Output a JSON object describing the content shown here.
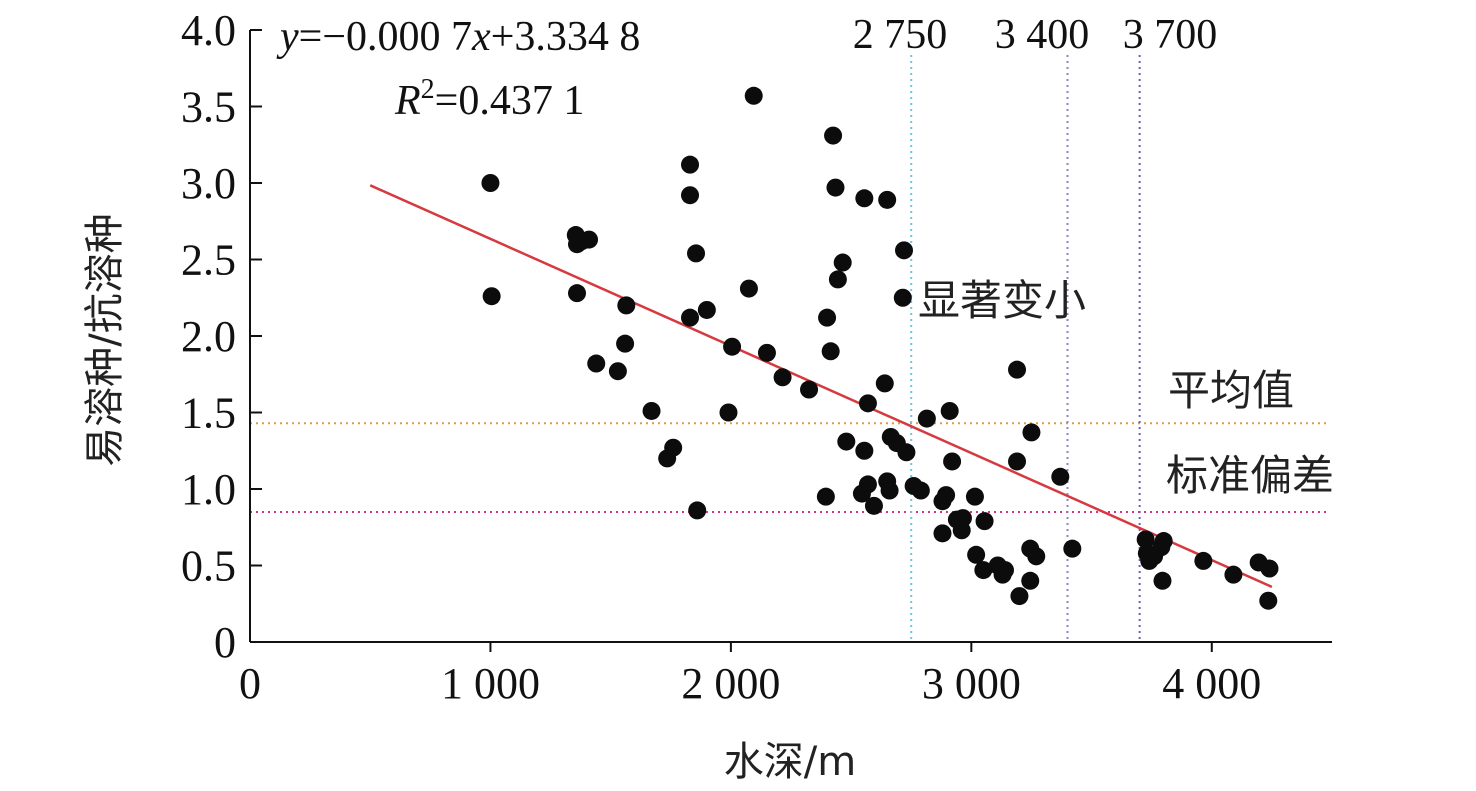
{
  "chart_data": {
    "type": "scatter",
    "xlabel": "水深/m",
    "ylabel": "易溶种/抗溶种",
    "xlim": [
      0,
      4500
    ],
    "ylim": [
      0,
      4.0
    ],
    "x_ticks": [
      {
        "value": 0,
        "label": "0"
      },
      {
        "value": 1000,
        "label": "1 000"
      },
      {
        "value": 2000,
        "label": "2 000"
      },
      {
        "value": 3000,
        "label": "3 000"
      },
      {
        "value": 4000,
        "label": "4 000"
      }
    ],
    "y_ticks": [
      {
        "value": 0,
        "label": "0"
      },
      {
        "value": 0.5,
        "label": "0.5"
      },
      {
        "value": 1.0,
        "label": "1.0"
      },
      {
        "value": 1.5,
        "label": "1.5"
      },
      {
        "value": 2.0,
        "label": "2.0"
      },
      {
        "value": 2.5,
        "label": "2.5"
      },
      {
        "value": 3.0,
        "label": "3.0"
      },
      {
        "value": 3.5,
        "label": "3.5"
      },
      {
        "value": 4.0,
        "label": "4.0"
      }
    ],
    "points": [
      {
        "x": 1000,
        "y": 3.0
      },
      {
        "x": 1005,
        "y": 2.26
      },
      {
        "x": 1355,
        "y": 2.66
      },
      {
        "x": 1360,
        "y": 2.6
      },
      {
        "x": 1380,
        "y": 2.62
      },
      {
        "x": 1410,
        "y": 2.63
      },
      {
        "x": 1360,
        "y": 2.28
      },
      {
        "x": 1565,
        "y": 2.2
      },
      {
        "x": 1560,
        "y": 1.95
      },
      {
        "x": 1440,
        "y": 1.82
      },
      {
        "x": 1530,
        "y": 1.77
      },
      {
        "x": 1670,
        "y": 1.51
      },
      {
        "x": 1760,
        "y": 1.27
      },
      {
        "x": 1735,
        "y": 1.2
      },
      {
        "x": 1830,
        "y": 3.12
      },
      {
        "x": 1830,
        "y": 2.92
      },
      {
        "x": 1855,
        "y": 2.54
      },
      {
        "x": 1900,
        "y": 2.17
      },
      {
        "x": 1830,
        "y": 2.12
      },
      {
        "x": 1860,
        "y": 0.86
      },
      {
        "x": 1990,
        "y": 1.5
      },
      {
        "x": 2005,
        "y": 1.93
      },
      {
        "x": 2075,
        "y": 2.31
      },
      {
        "x": 2095,
        "y": 3.57
      },
      {
        "x": 2150,
        "y": 1.89
      },
      {
        "x": 2215,
        "y": 1.73
      },
      {
        "x": 2325,
        "y": 1.65
      },
      {
        "x": 2425,
        "y": 3.31
      },
      {
        "x": 2435,
        "y": 2.97
      },
      {
        "x": 2445,
        "y": 2.37
      },
      {
        "x": 2465,
        "y": 2.48
      },
      {
        "x": 2400,
        "y": 2.12
      },
      {
        "x": 2415,
        "y": 1.9
      },
      {
        "x": 2395,
        "y": 0.95
      },
      {
        "x": 2555,
        "y": 2.9
      },
      {
        "x": 2650,
        "y": 2.89
      },
      {
        "x": 2720,
        "y": 2.56
      },
      {
        "x": 2715,
        "y": 2.25
      },
      {
        "x": 2570,
        "y": 1.56
      },
      {
        "x": 2640,
        "y": 1.69
      },
      {
        "x": 2480,
        "y": 1.31
      },
      {
        "x": 2555,
        "y": 1.25
      },
      {
        "x": 2665,
        "y": 1.34
      },
      {
        "x": 2690,
        "y": 1.3
      },
      {
        "x": 2730,
        "y": 1.24
      },
      {
        "x": 2545,
        "y": 0.97
      },
      {
        "x": 2570,
        "y": 1.03
      },
      {
        "x": 2595,
        "y": 0.89
      },
      {
        "x": 2650,
        "y": 1.05
      },
      {
        "x": 2660,
        "y": 0.99
      },
      {
        "x": 2760,
        "y": 1.02
      },
      {
        "x": 2790,
        "y": 0.99
      },
      {
        "x": 2815,
        "y": 1.46
      },
      {
        "x": 2910,
        "y": 1.51
      },
      {
        "x": 2920,
        "y": 1.18
      },
      {
        "x": 2880,
        "y": 0.92
      },
      {
        "x": 2895,
        "y": 0.96
      },
      {
        "x": 2880,
        "y": 0.71
      },
      {
        "x": 2940,
        "y": 0.8
      },
      {
        "x": 2960,
        "y": 0.73
      },
      {
        "x": 2965,
        "y": 0.81
      },
      {
        "x": 3015,
        "y": 0.95
      },
      {
        "x": 3055,
        "y": 0.79
      },
      {
        "x": 3020,
        "y": 0.57
      },
      {
        "x": 3050,
        "y": 0.47
      },
      {
        "x": 3110,
        "y": 0.5
      },
      {
        "x": 3130,
        "y": 0.44
      },
      {
        "x": 3140,
        "y": 0.47
      },
      {
        "x": 3200,
        "y": 0.3
      },
      {
        "x": 3190,
        "y": 1.78
      },
      {
        "x": 3190,
        "y": 1.18
      },
      {
        "x": 3250,
        "y": 1.37
      },
      {
        "x": 3245,
        "y": 0.61
      },
      {
        "x": 3270,
        "y": 0.56
      },
      {
        "x": 3245,
        "y": 0.4
      },
      {
        "x": 3370,
        "y": 1.08
      },
      {
        "x": 3420,
        "y": 0.61
      },
      {
        "x": 3725,
        "y": 0.67
      },
      {
        "x": 3730,
        "y": 0.58
      },
      {
        "x": 3740,
        "y": 0.53
      },
      {
        "x": 3760,
        "y": 0.56
      },
      {
        "x": 3790,
        "y": 0.62
      },
      {
        "x": 3800,
        "y": 0.66
      },
      {
        "x": 3795,
        "y": 0.4
      },
      {
        "x": 3965,
        "y": 0.53
      },
      {
        "x": 4090,
        "y": 0.44
      },
      {
        "x": 4195,
        "y": 0.52
      },
      {
        "x": 4240,
        "y": 0.48
      },
      {
        "x": 4235,
        "y": 0.27
      }
    ],
    "regression": {
      "x_start": 500,
      "x_end": 4250,
      "equation_y": "y",
      "equation_rest": "=−0.000 7",
      "equation_x": "x",
      "equation_tail": "+3.334 8",
      "r2_label": "R",
      "r2_sup": "2",
      "r2_value": "=0.437 1",
      "color": "#d63a3f"
    },
    "vlines": [
      {
        "x": 2750,
        "label": "2 750",
        "color": "#6ec3e6"
      },
      {
        "x": 3400,
        "label": "3 400",
        "color": "#8c86c6"
      },
      {
        "x": 3700,
        "label": "3 700",
        "color": "#6a62b0"
      }
    ],
    "hlines": [
      {
        "y": 1.43,
        "label": "平均值",
        "color": "#e39a3e"
      },
      {
        "y": 0.85,
        "label": "标准偏差",
        "color": "#d3348c"
      }
    ],
    "annotation": "显著变小",
    "marker_color": "#0c0c0c"
  }
}
